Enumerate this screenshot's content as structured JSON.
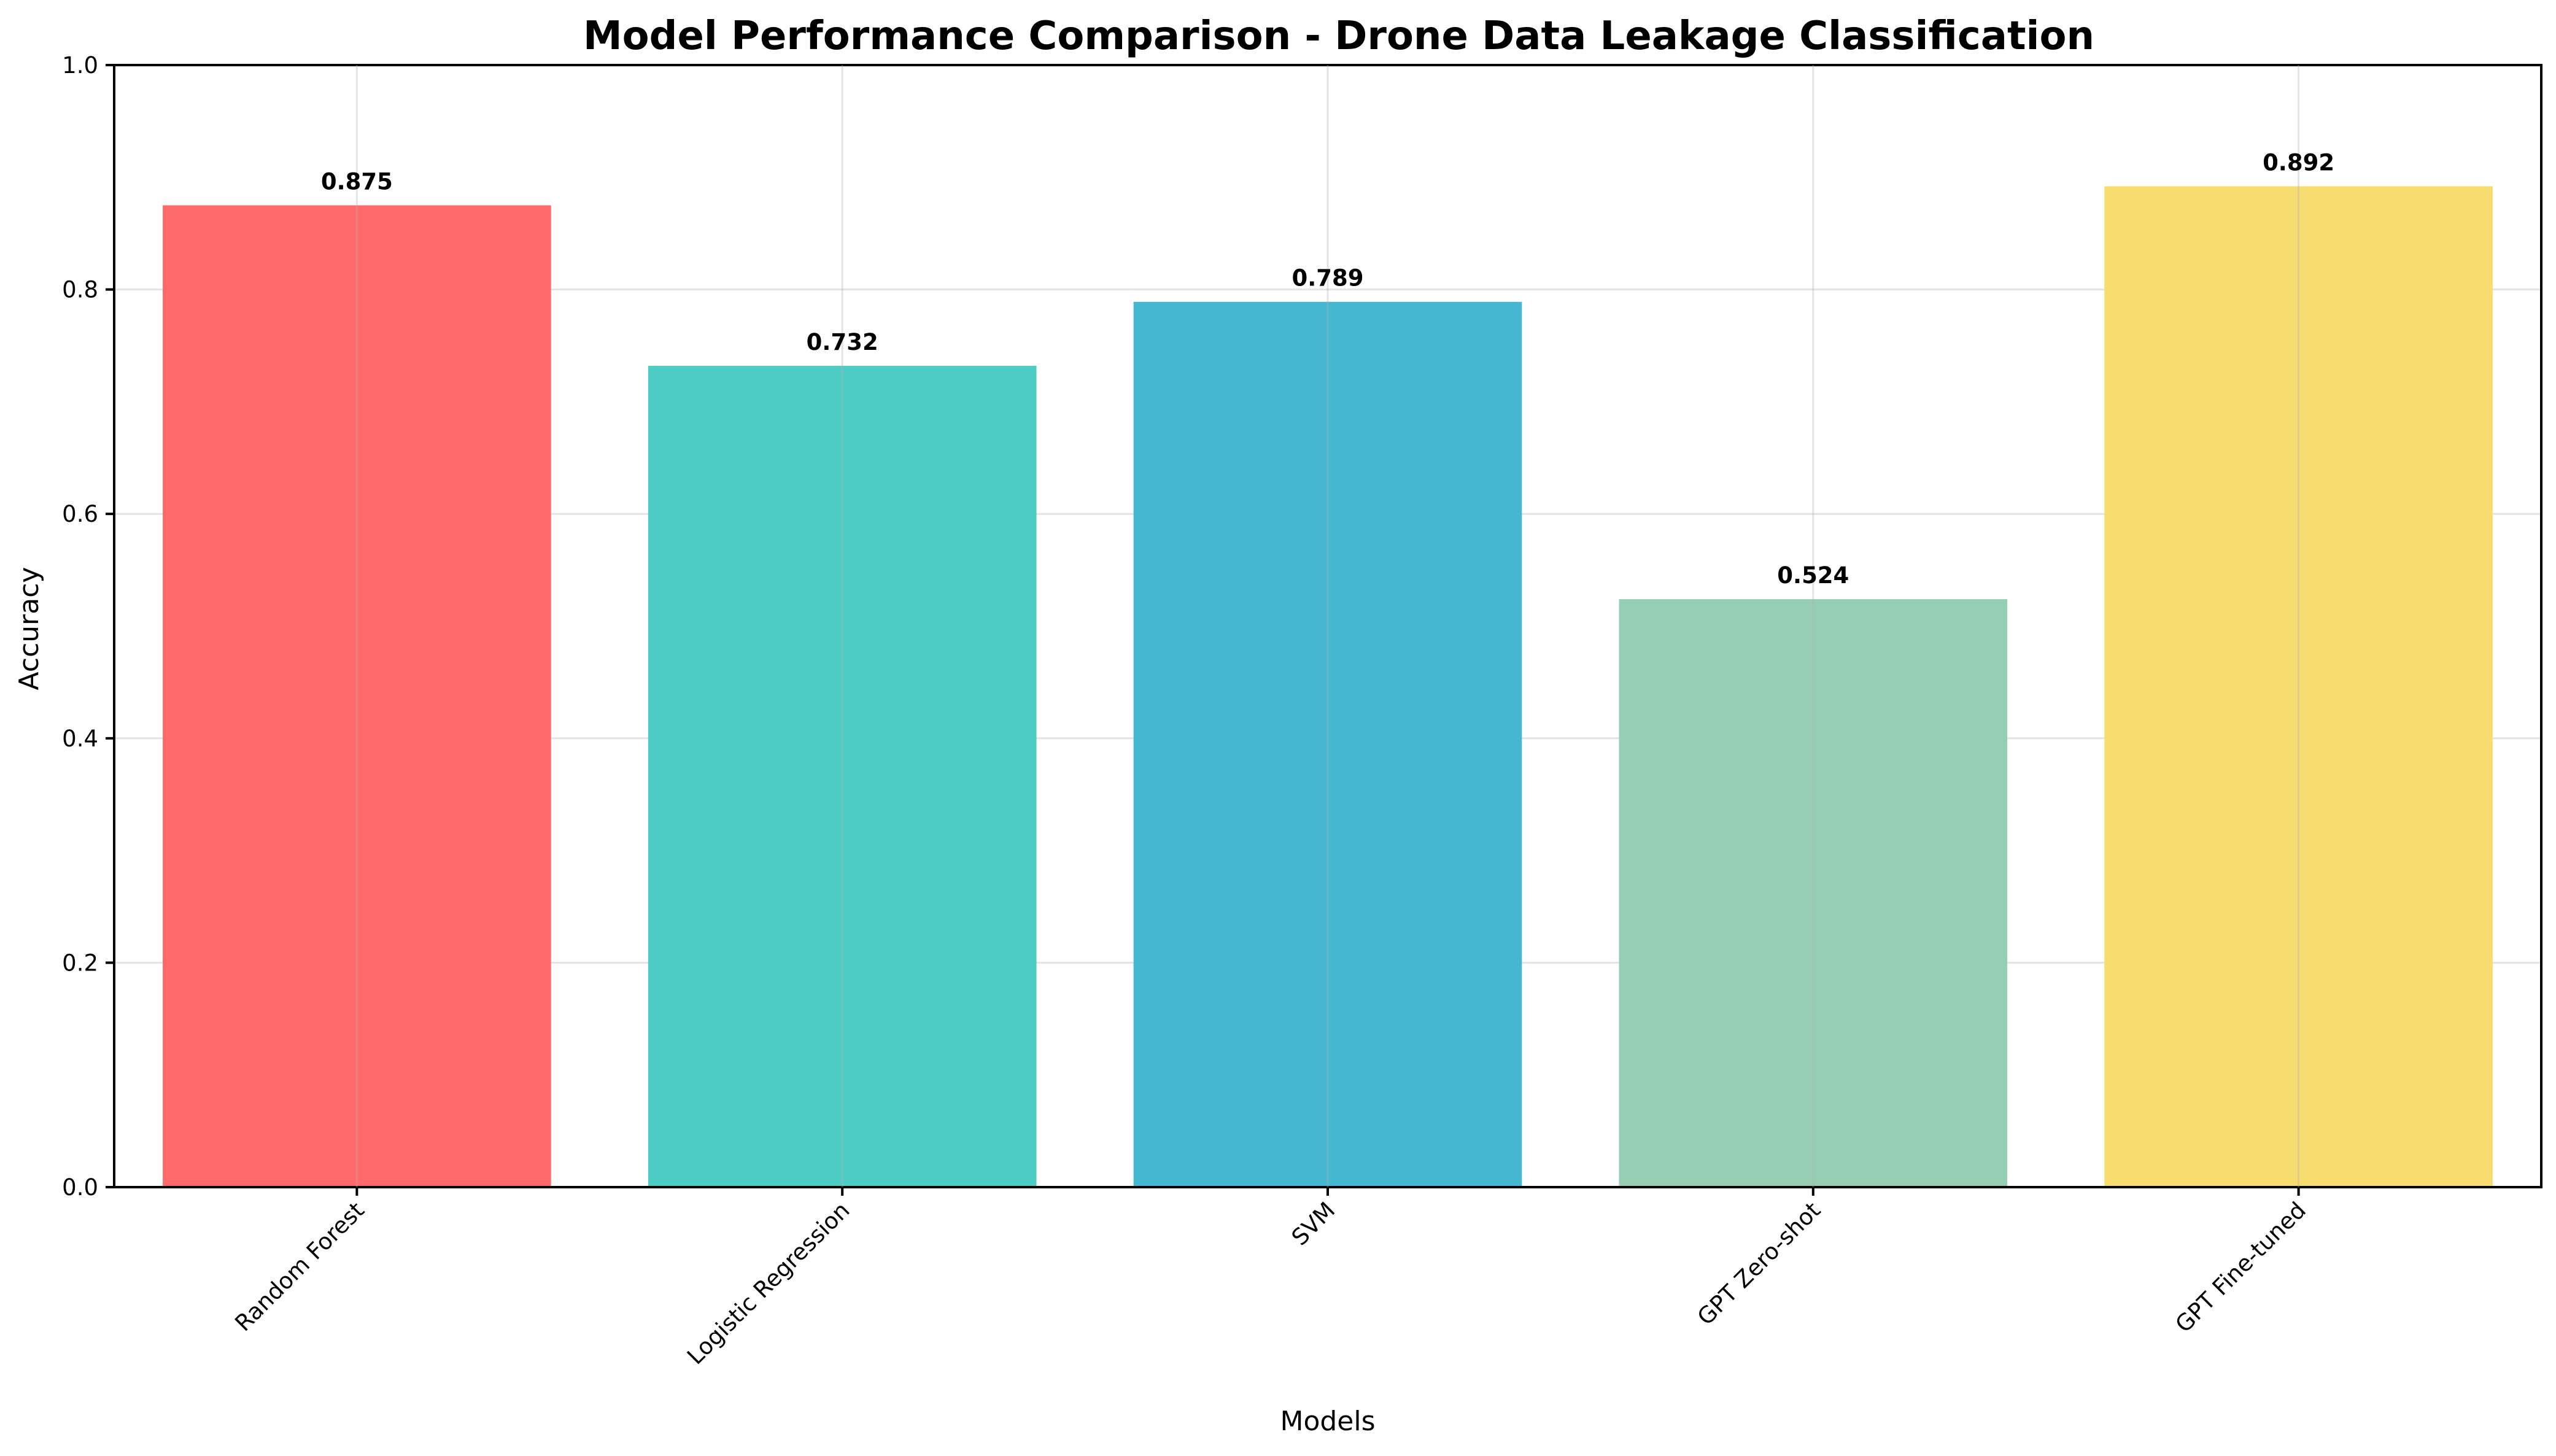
{
  "chart_data": {
    "type": "bar",
    "title": "Model Performance Comparison - Drone Data Leakage Classification",
    "xlabel": "Models",
    "ylabel": "Accuracy",
    "categories": [
      "Random Forest",
      "Logistic Regression",
      "SVM",
      "GPT Zero-shot",
      "GPT Fine-tuned"
    ],
    "values": [
      0.875,
      0.732,
      0.789,
      0.524,
      0.892
    ],
    "value_labels": [
      "0.875",
      "0.732",
      "0.789",
      "0.524",
      "0.892"
    ],
    "colors": [
      "#ff6b6b",
      "#4ecdc4",
      "#45b7d1",
      "#96ceb4",
      "#f7dc6f"
    ],
    "ylim": [
      0,
      1.0
    ],
    "yticks": [
      0.0,
      0.2,
      0.4,
      0.6,
      0.8,
      1.0
    ],
    "ytick_labels": [
      "0.0",
      "0.2",
      "0.4",
      "0.6",
      "0.8",
      "1.0"
    ],
    "grid": true,
    "xtick_rotation": "45 degrees"
  }
}
